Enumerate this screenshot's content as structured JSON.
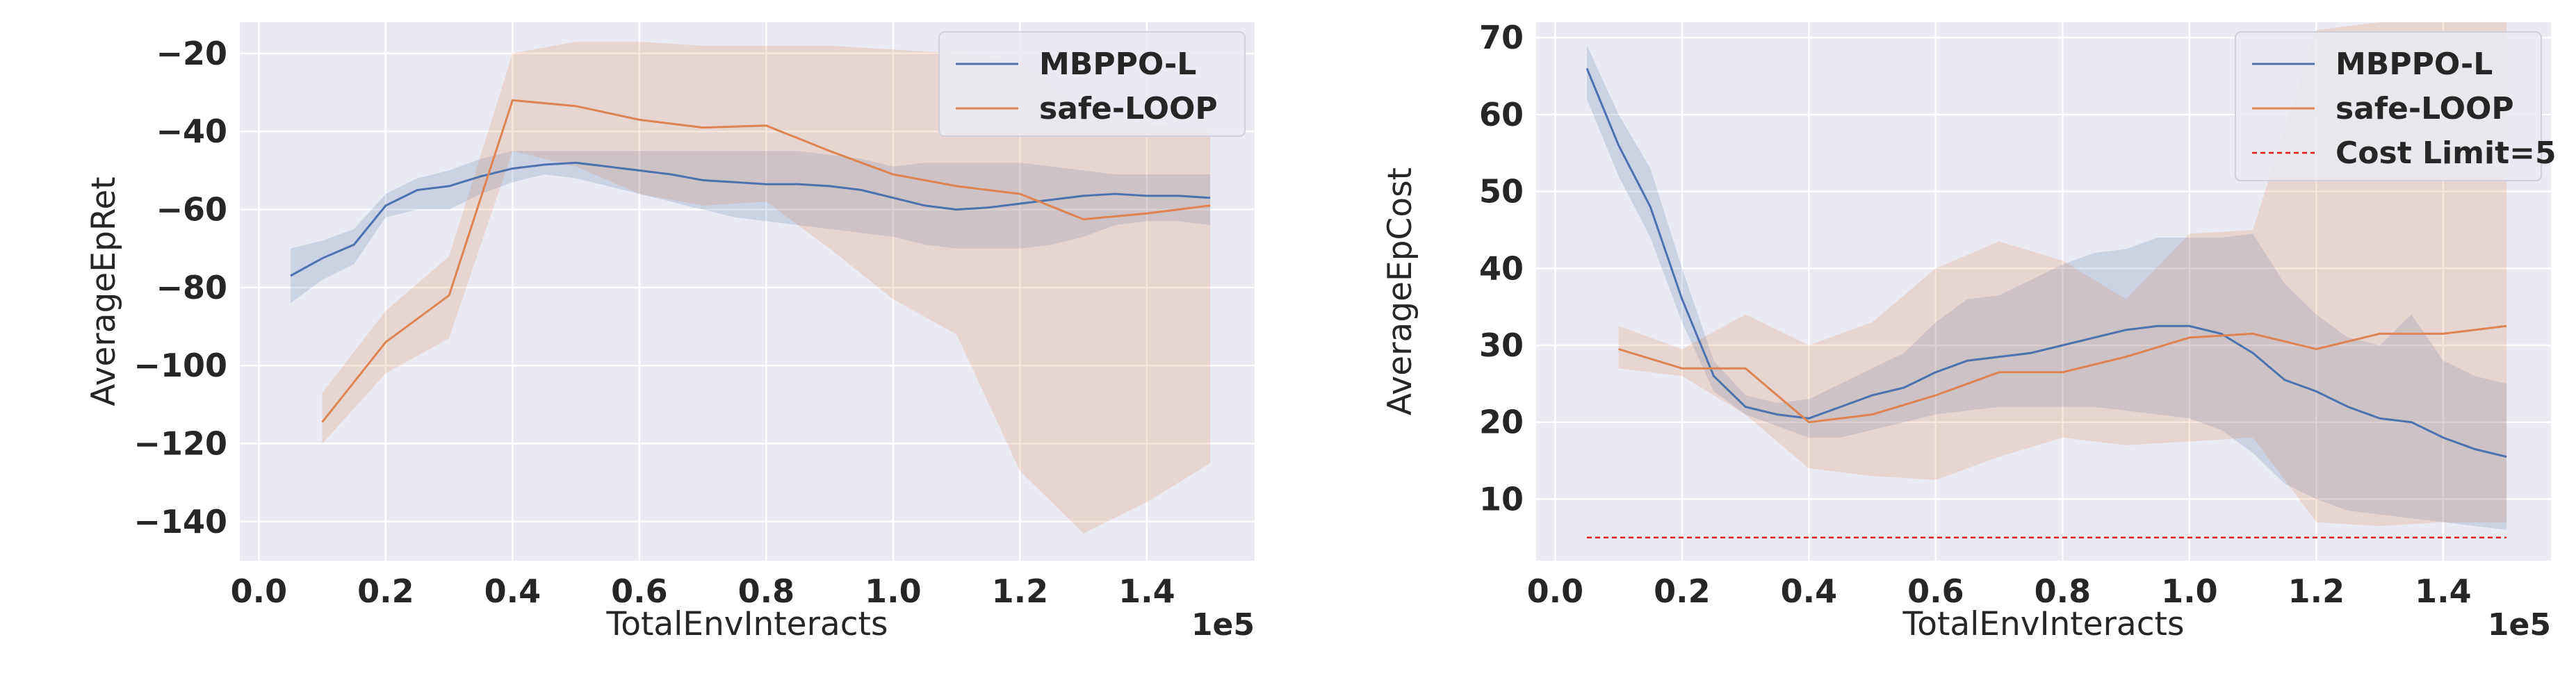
{
  "chart_data": [
    {
      "type": "line",
      "xlabel": "TotalEnvInteracts",
      "ylabel": "AverageEpRet",
      "x_scale_label": "1e5",
      "xlim": [
        -0.03,
        1.57
      ],
      "ylim": [
        -150,
        -12
      ],
      "xticks": [
        0.0,
        0.2,
        0.4,
        0.6,
        0.8,
        1.0,
        1.2,
        1.4
      ],
      "xtick_labels": [
        "0.0",
        "0.2",
        "0.4",
        "0.6",
        "0.8",
        "1.0",
        "1.2",
        "1.4"
      ],
      "yticks": [
        -140,
        -120,
        -100,
        -80,
        -60,
        -40,
        -20
      ],
      "ytick_labels": [
        "−140",
        "−120",
        "−100",
        "−80",
        "−60",
        "−40",
        "−20"
      ],
      "grid": true,
      "legend_position": "top-right",
      "series": [
        {
          "name": "MBPPO-L",
          "color": "#4c72b0",
          "x": [
            0.05,
            0.1,
            0.15,
            0.2,
            0.25,
            0.3,
            0.35,
            0.4,
            0.45,
            0.5,
            0.55,
            0.6,
            0.65,
            0.7,
            0.75,
            0.8,
            0.85,
            0.9,
            0.95,
            1.0,
            1.05,
            1.1,
            1.15,
            1.2,
            1.25,
            1.3,
            1.35,
            1.4,
            1.45,
            1.5
          ],
          "y": [
            -77,
            -72.5,
            -69,
            -59,
            -55,
            -54,
            -51.5,
            -49.5,
            -48.5,
            -48,
            -49,
            -50,
            -51,
            -52.5,
            -53,
            -53.5,
            -53.5,
            -54,
            -55,
            -57,
            -59,
            -60,
            -59.5,
            -58.5,
            -57.5,
            -56.5,
            -56,
            -56.5,
            -56.5,
            -57
          ],
          "lower": [
            -84,
            -78,
            -74,
            -62,
            -60,
            -60,
            -56,
            -53,
            -51,
            -52,
            -54,
            -56,
            -58,
            -60,
            -62,
            -63,
            -64,
            -65,
            -66,
            -67,
            -69,
            -70,
            -70,
            -70,
            -69,
            -67,
            -64,
            -63,
            -63,
            -64
          ],
          "upper": [
            -70,
            -68,
            -65,
            -56,
            -52,
            -50,
            -47,
            -45,
            -45,
            -45,
            -45,
            -45,
            -45,
            -45,
            -45,
            -45,
            -45,
            -46,
            -47,
            -49,
            -48,
            -48,
            -48,
            -48,
            -49,
            -50,
            -51,
            -51,
            -51,
            -51
          ]
        },
        {
          "name": "safe-LOOP",
          "color": "#dd8452",
          "x": [
            0.1,
            0.2,
            0.3,
            0.4,
            0.5,
            0.6,
            0.7,
            0.8,
            0.9,
            1.0,
            1.1,
            1.2,
            1.3,
            1.4,
            1.5
          ],
          "y": [
            -114.5,
            -94,
            -82,
            -32,
            -33.5,
            -37,
            -39,
            -38.5,
            -45,
            -51,
            -54,
            -56,
            -62.5,
            -61,
            -59
          ],
          "lower": [
            -120,
            -102,
            -93,
            -45,
            -49,
            -56,
            -59,
            -58,
            -70,
            -83,
            -92,
            -127,
            -143,
            -135,
            -125
          ],
          "upper": [
            -107,
            -86,
            -72,
            -20,
            -17,
            -17,
            -18,
            -18,
            -18,
            -19,
            -20,
            -22,
            -35,
            -38,
            -40
          ]
        }
      ]
    },
    {
      "type": "line",
      "xlabel": "TotalEnvInteracts",
      "ylabel": "AverageEpCost",
      "x_scale_label": "1e5",
      "xlim": [
        -0.03,
        1.57
      ],
      "ylim": [
        2,
        72
      ],
      "xticks": [
        0.0,
        0.2,
        0.4,
        0.6,
        0.8,
        1.0,
        1.2,
        1.4
      ],
      "xtick_labels": [
        "0.0",
        "0.2",
        "0.4",
        "0.6",
        "0.8",
        "1.0",
        "1.2",
        "1.4"
      ],
      "yticks": [
        10,
        20,
        30,
        40,
        50,
        60,
        70
      ],
      "ytick_labels": [
        "10",
        "20",
        "30",
        "40",
        "50",
        "60",
        "70"
      ],
      "grid": true,
      "legend_position": "top-right",
      "series": [
        {
          "name": "MBPPO-L",
          "color": "#4c72b0",
          "x": [
            0.05,
            0.1,
            0.15,
            0.2,
            0.25,
            0.3,
            0.35,
            0.4,
            0.45,
            0.5,
            0.55,
            0.6,
            0.65,
            0.7,
            0.75,
            0.8,
            0.85,
            0.9,
            0.95,
            1.0,
            1.05,
            1.1,
            1.15,
            1.2,
            1.25,
            1.3,
            1.35,
            1.4,
            1.45,
            1.5
          ],
          "y": [
            66,
            56,
            48,
            36,
            26,
            22,
            21,
            20.5,
            22,
            23.5,
            24.5,
            26.5,
            28,
            28.5,
            29,
            30,
            31,
            32,
            32.5,
            32.5,
            31.5,
            29,
            25.5,
            24,
            22,
            20.5,
            20,
            18,
            16.5,
            15.5
          ],
          "lower": [
            62,
            52,
            44,
            33,
            24,
            21,
            19.5,
            18,
            18,
            19,
            20,
            21,
            21.5,
            22,
            22,
            22,
            22,
            21.5,
            21,
            20.5,
            19,
            16,
            12,
            10,
            8.5,
            8,
            7.5,
            7,
            6.5,
            6
          ],
          "upper": [
            69,
            60,
            53,
            40,
            28,
            23.5,
            22.5,
            23,
            25,
            27,
            29,
            33,
            36,
            36.5,
            38.5,
            40.5,
            42,
            42.5,
            44,
            44,
            44,
            44.5,
            38,
            34,
            31,
            30,
            34,
            28,
            26,
            25
          ]
        },
        {
          "name": "safe-LOOP",
          "color": "#dd8452",
          "x": [
            0.1,
            0.2,
            0.3,
            0.4,
            0.5,
            0.6,
            0.7,
            0.8,
            0.9,
            1.0,
            1.1,
            1.2,
            1.3,
            1.4,
            1.5
          ],
          "y": [
            29.5,
            27,
            27,
            20,
            21,
            23.5,
            26.5,
            26.5,
            28.5,
            31,
            31.5,
            29.5,
            31.5,
            31.5,
            32.5
          ],
          "lower": [
            27,
            26,
            21,
            14,
            13,
            12.5,
            15.5,
            18,
            17,
            17.5,
            18,
            7,
            6.5,
            7,
            7
          ],
          "upper": [
            32.5,
            29.5,
            34,
            30,
            33,
            40,
            43.5,
            41,
            36,
            44.5,
            45,
            71,
            72,
            72,
            72
          ]
        },
        {
          "name": "Cost Limit=5",
          "color": "#e31a1c",
          "style": "dashed",
          "x": [
            0.05,
            1.5
          ],
          "y": [
            5,
            5
          ]
        }
      ]
    }
  ]
}
